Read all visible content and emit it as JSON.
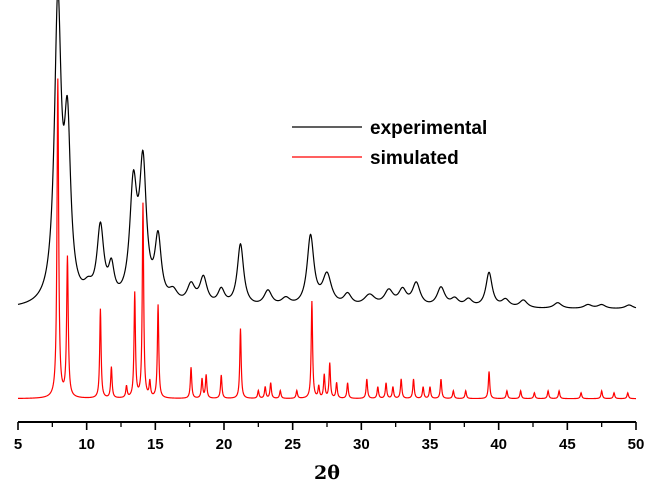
{
  "chart_data": {
    "type": "line",
    "xlabel": "2θ",
    "ylabel": "",
    "xlim": [
      5,
      50
    ],
    "ylim": [
      -0.06,
      1.0
    ],
    "xticks": [
      "5",
      "10",
      "15",
      "20",
      "25",
      "30",
      "35",
      "40",
      "45",
      "50"
    ],
    "grid": false,
    "legend": {
      "placement": "top-right"
    },
    "series": [
      {
        "name": "experimental",
        "color": "#000000",
        "offset": 0.2,
        "baseline": 0.03,
        "peaks": [
          [
            7.9,
            0.76,
            0.3
          ],
          [
            8.6,
            0.42,
            0.28
          ],
          [
            10.1,
            0.03,
            0.4
          ],
          [
            11.0,
            0.19,
            0.3
          ],
          [
            11.8,
            0.08,
            0.25
          ],
          [
            13.4,
            0.29,
            0.32
          ],
          [
            14.1,
            0.34,
            0.3
          ],
          [
            15.2,
            0.16,
            0.28
          ],
          [
            16.3,
            0.03,
            0.4
          ],
          [
            17.6,
            0.05,
            0.35
          ],
          [
            18.5,
            0.07,
            0.32
          ],
          [
            19.8,
            0.04,
            0.3
          ],
          [
            21.2,
            0.16,
            0.28
          ],
          [
            23.2,
            0.04,
            0.35
          ],
          [
            24.5,
            0.02,
            0.4
          ],
          [
            26.3,
            0.18,
            0.3
          ],
          [
            27.5,
            0.08,
            0.4
          ],
          [
            29.0,
            0.03,
            0.35
          ],
          [
            30.6,
            0.03,
            0.5
          ],
          [
            32.0,
            0.04,
            0.4
          ],
          [
            33.0,
            0.04,
            0.35
          ],
          [
            34.0,
            0.06,
            0.35
          ],
          [
            35.8,
            0.05,
            0.35
          ],
          [
            36.8,
            0.02,
            0.35
          ],
          [
            37.8,
            0.02,
            0.35
          ],
          [
            39.3,
            0.09,
            0.28
          ],
          [
            40.5,
            0.02,
            0.35
          ],
          [
            41.8,
            0.02,
            0.35
          ],
          [
            44.3,
            0.015,
            0.35
          ],
          [
            46.5,
            0.01,
            0.35
          ],
          [
            47.5,
            0.01,
            0.35
          ],
          [
            49.5,
            0.01,
            0.35
          ]
        ]
      },
      {
        "name": "simulated",
        "color": "#ff0000",
        "offset": 0.0,
        "baseline": 0.0,
        "peaks": [
          [
            7.9,
            0.82,
            0.07
          ],
          [
            8.6,
            0.36,
            0.07
          ],
          [
            11.0,
            0.23,
            0.06
          ],
          [
            11.8,
            0.08,
            0.06
          ],
          [
            12.9,
            0.03,
            0.06
          ],
          [
            13.5,
            0.27,
            0.06
          ],
          [
            14.1,
            0.5,
            0.06
          ],
          [
            14.6,
            0.04,
            0.06
          ],
          [
            15.2,
            0.24,
            0.06
          ],
          [
            17.6,
            0.08,
            0.06
          ],
          [
            18.4,
            0.05,
            0.06
          ],
          [
            18.7,
            0.06,
            0.06
          ],
          [
            19.8,
            0.06,
            0.06
          ],
          [
            21.2,
            0.18,
            0.06
          ],
          [
            22.5,
            0.02,
            0.06
          ],
          [
            23.0,
            0.03,
            0.06
          ],
          [
            23.4,
            0.04,
            0.06
          ],
          [
            24.1,
            0.02,
            0.06
          ],
          [
            25.3,
            0.02,
            0.06
          ],
          [
            26.4,
            0.25,
            0.06
          ],
          [
            26.9,
            0.03,
            0.06
          ],
          [
            27.3,
            0.06,
            0.06
          ],
          [
            27.7,
            0.09,
            0.06
          ],
          [
            28.2,
            0.04,
            0.06
          ],
          [
            29.0,
            0.04,
            0.06
          ],
          [
            30.4,
            0.05,
            0.06
          ],
          [
            31.2,
            0.03,
            0.06
          ],
          [
            31.8,
            0.04,
            0.06
          ],
          [
            32.3,
            0.03,
            0.06
          ],
          [
            32.9,
            0.05,
            0.06
          ],
          [
            33.8,
            0.05,
            0.06
          ],
          [
            34.5,
            0.03,
            0.06
          ],
          [
            35.0,
            0.03,
            0.06
          ],
          [
            35.8,
            0.05,
            0.06
          ],
          [
            36.7,
            0.02,
            0.06
          ],
          [
            37.6,
            0.02,
            0.06
          ],
          [
            39.3,
            0.07,
            0.06
          ],
          [
            40.6,
            0.02,
            0.06
          ],
          [
            41.6,
            0.02,
            0.06
          ],
          [
            42.6,
            0.015,
            0.06
          ],
          [
            43.6,
            0.02,
            0.06
          ],
          [
            44.4,
            0.02,
            0.06
          ],
          [
            46.0,
            0.015,
            0.06
          ],
          [
            47.5,
            0.02,
            0.06
          ],
          [
            48.4,
            0.015,
            0.06
          ],
          [
            49.4,
            0.015,
            0.06
          ]
        ]
      }
    ]
  }
}
